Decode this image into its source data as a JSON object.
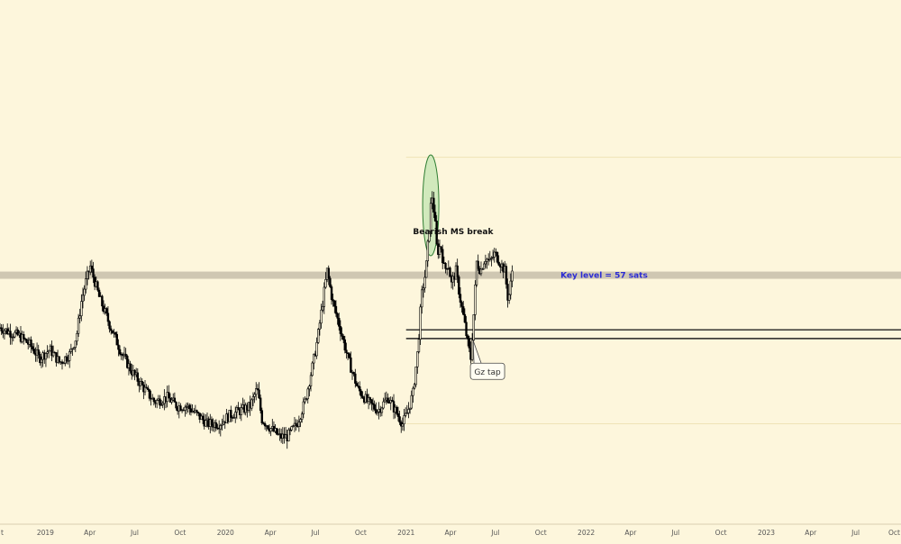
{
  "chart_data": {
    "type": "candlestick",
    "x_range": [
      "2018-10-01",
      "2023-10-01"
    ],
    "y_range_sats": [
      0,
      120
    ],
    "x_axis_ticks": [
      {
        "label": "t",
        "date": "2018-10-01"
      },
      {
        "label": "2019",
        "date": "2019-01-01"
      },
      {
        "label": "Apr",
        "date": "2019-04-01"
      },
      {
        "label": "Jul",
        "date": "2019-07-01"
      },
      {
        "label": "Oct",
        "date": "2019-10-01"
      },
      {
        "label": "2020",
        "date": "2020-01-01"
      },
      {
        "label": "Apr",
        "date": "2020-04-01"
      },
      {
        "label": "Jul",
        "date": "2020-07-01"
      },
      {
        "label": "Oct",
        "date": "2020-10-01"
      },
      {
        "label": "2021",
        "date": "2021-01-01"
      },
      {
        "label": "Apr",
        "date": "2021-04-01"
      },
      {
        "label": "Jul",
        "date": "2021-07-01"
      },
      {
        "label": "Oct",
        "date": "2021-10-01"
      },
      {
        "label": "2022",
        "date": "2022-01-01"
      },
      {
        "label": "Apr",
        "date": "2022-04-01"
      },
      {
        "label": "Jul",
        "date": "2022-07-01"
      },
      {
        "label": "Oct",
        "date": "2022-10-01"
      },
      {
        "label": "2023",
        "date": "2023-01-01"
      },
      {
        "label": "Apr",
        "date": "2023-04-01"
      },
      {
        "label": "Jul",
        "date": "2023-07-01"
      },
      {
        "label": "Oct",
        "date": "2023-10-01"
      }
    ],
    "price_path": [
      [
        "2018-10-01",
        45
      ],
      [
        "2018-10-20",
        44
      ],
      [
        "2018-11-10",
        43
      ],
      [
        "2018-12-01",
        41
      ],
      [
        "2018-12-20",
        38
      ],
      [
        "2019-01-10",
        40
      ],
      [
        "2019-01-30",
        37
      ],
      [
        "2019-02-20",
        39
      ],
      [
        "2019-03-05",
        43
      ],
      [
        "2019-03-15",
        51
      ],
      [
        "2019-03-25",
        56
      ],
      [
        "2019-04-02",
        59
      ],
      [
        "2019-04-20",
        52
      ],
      [
        "2019-05-10",
        46
      ],
      [
        "2019-06-05",
        39
      ],
      [
        "2019-06-25",
        35
      ],
      [
        "2019-07-20",
        31
      ],
      [
        "2019-08-10",
        28
      ],
      [
        "2019-09-05",
        29
      ],
      [
        "2019-09-25",
        27
      ],
      [
        "2019-10-15",
        27
      ],
      [
        "2019-11-05",
        25
      ],
      [
        "2019-11-25",
        23
      ],
      [
        "2019-12-20",
        23
      ],
      [
        "2020-01-10",
        25
      ],
      [
        "2020-02-01",
        26
      ],
      [
        "2020-02-20",
        27
      ],
      [
        "2020-03-05",
        31
      ],
      [
        "2020-03-15",
        24
      ],
      [
        "2020-04-01",
        22
      ],
      [
        "2020-04-20",
        20
      ],
      [
        "2020-05-05",
        20
      ],
      [
        "2020-05-25",
        23
      ],
      [
        "2020-06-10",
        28
      ],
      [
        "2020-06-25",
        36
      ],
      [
        "2020-07-05",
        42
      ],
      [
        "2020-07-15",
        50
      ],
      [
        "2020-07-25",
        58
      ],
      [
        "2020-08-05",
        51
      ],
      [
        "2020-08-20",
        45
      ],
      [
        "2020-09-05",
        38
      ],
      [
        "2020-09-25",
        31
      ],
      [
        "2020-10-15",
        28
      ],
      [
        "2020-11-05",
        26
      ],
      [
        "2020-11-25",
        29
      ],
      [
        "2020-12-10",
        26
      ],
      [
        "2020-12-25",
        23
      ],
      [
        "2021-01-05",
        26
      ],
      [
        "2021-01-15",
        30
      ],
      [
        "2021-01-25",
        40
      ],
      [
        "2021-02-01",
        52
      ],
      [
        "2021-02-10",
        58
      ],
      [
        "2021-02-17",
        68
      ],
      [
        "2021-02-22",
        76
      ],
      [
        "2021-02-28",
        70
      ],
      [
        "2021-03-05",
        62
      ],
      [
        "2021-03-12",
        64
      ],
      [
        "2021-03-20",
        58
      ],
      [
        "2021-03-27",
        60
      ],
      [
        "2021-04-03",
        55
      ],
      [
        "2021-04-12",
        58
      ],
      [
        "2021-04-20",
        52
      ],
      [
        "2021-04-28",
        47
      ],
      [
        "2021-05-05",
        42
      ],
      [
        "2021-05-12",
        38
      ],
      [
        "2021-05-18",
        48
      ],
      [
        "2021-05-24",
        60
      ],
      [
        "2021-06-01",
        58
      ],
      [
        "2021-06-10",
        61
      ],
      [
        "2021-06-20",
        60
      ],
      [
        "2021-06-30",
        62
      ],
      [
        "2021-07-10",
        60
      ],
      [
        "2021-07-20",
        58
      ],
      [
        "2021-07-27",
        51
      ],
      [
        "2021-08-01",
        55
      ],
      [
        "2021-08-05",
        59
      ]
    ],
    "annotations": [
      {
        "text": "Bearish MS break",
        "date": "2021-01-15",
        "value": 67,
        "color": "#111111"
      },
      {
        "text": "Key level = 57 sats",
        "date": "2021-11-10",
        "value": 57,
        "color": "#2b2bd4"
      },
      {
        "text": "Gz tap",
        "date": "2021-06-15",
        "value": 35,
        "callout": true,
        "points_to": {
          "date": "2021-05-17",
          "value": 42
        }
      }
    ],
    "key_level_band": {
      "value": 57,
      "color": "#cfc7b2"
    },
    "zone_lines": [
      {
        "value": 44.5,
        "from_date": "2021-01-01"
      },
      {
        "value": 42.5,
        "from_date": "2021-01-01"
      }
    ],
    "range_lines": [
      {
        "value": 84,
        "from_date": "2021-01-01",
        "color": "#efe3b6"
      },
      {
        "value": 23,
        "from_date": "2021-01-01",
        "color": "#efe3b6"
      }
    ],
    "highlight_ellipse": {
      "center_date": "2021-02-20",
      "center_value": 73,
      "fill": "#c9e6b6",
      "stroke": "#2e7d32"
    },
    "colors": {
      "background": "#fdf6dc",
      "candles": "#000000",
      "axis": "#555555"
    }
  }
}
